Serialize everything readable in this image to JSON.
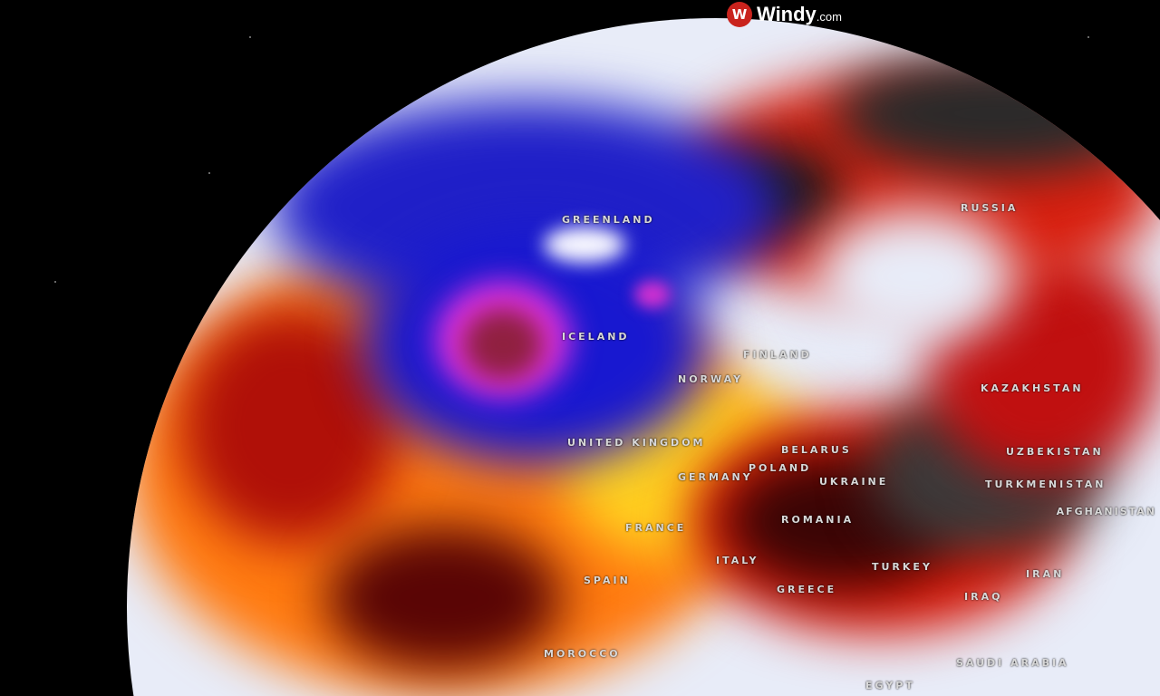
{
  "brand": {
    "name": "Windy",
    "suffix": ".com",
    "icon": "windy-logo-icon",
    "accent": "#c9231d"
  },
  "map": {
    "labels": [
      {
        "id": "greenland",
        "text": "GREENLAND"
      },
      {
        "id": "russia",
        "text": "RUSSIA"
      },
      {
        "id": "iceland",
        "text": "ICELAND"
      },
      {
        "id": "finland",
        "text": "FINLAND"
      },
      {
        "id": "norway",
        "text": "NORWAY"
      },
      {
        "id": "united-kingdom",
        "text": "UNITED KINGDOM"
      },
      {
        "id": "belarus",
        "text": "BELARUS"
      },
      {
        "id": "poland",
        "text": "POLAND"
      },
      {
        "id": "germany",
        "text": "GERMANY"
      },
      {
        "id": "ukraine",
        "text": "UKRAINE"
      },
      {
        "id": "kazakhstan",
        "text": "KAZAKHSTAN"
      },
      {
        "id": "uzbekistan",
        "text": "UZBEKISTAN"
      },
      {
        "id": "turkmenistan",
        "text": "TURKMENISTAN"
      },
      {
        "id": "afghanistan",
        "text": "AFGHANISTAN"
      },
      {
        "id": "france",
        "text": "FRANCE"
      },
      {
        "id": "romania",
        "text": "ROMANIA"
      },
      {
        "id": "spain",
        "text": "SPAIN"
      },
      {
        "id": "italy",
        "text": "ITALY"
      },
      {
        "id": "turkey",
        "text": "TURKEY"
      },
      {
        "id": "greece",
        "text": "GREECE"
      },
      {
        "id": "iran",
        "text": "IRAN"
      },
      {
        "id": "iraq",
        "text": "IRAQ"
      },
      {
        "id": "morocco",
        "text": "MOROCCO"
      },
      {
        "id": "saudi-arabia",
        "text": "SAUDI ARABIA"
      },
      {
        "id": "egypt",
        "text": "EGYPT"
      }
    ],
    "colors": {
      "cold": "#1a1ad0",
      "very_cold": "#e020e0",
      "neutral": "#e8ecf8",
      "warm": "#ffe030",
      "hot": "#e02010",
      "extreme": "#3a3a3a"
    }
  }
}
